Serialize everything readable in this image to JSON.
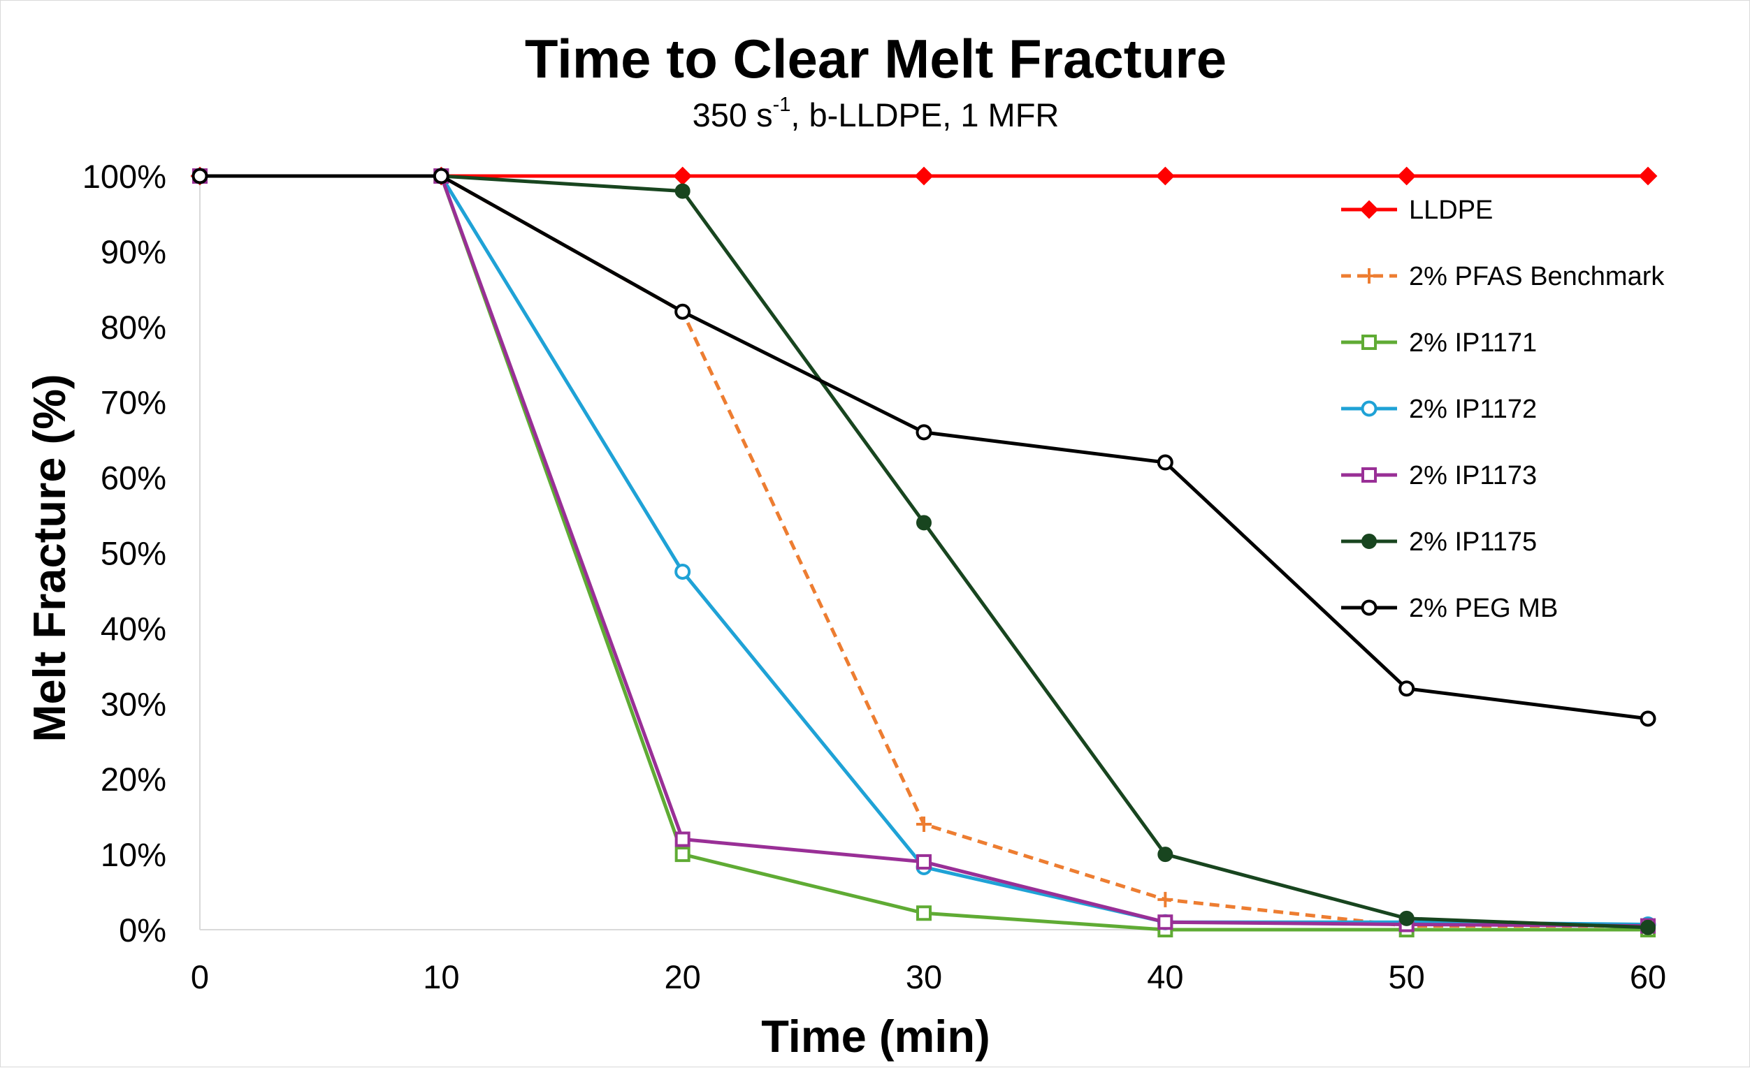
{
  "chart_data": {
    "type": "line",
    "title": "Time to Clear Melt Fracture",
    "subtitle": {
      "base": "350 s",
      "superscript": "-1",
      "rest": ", b-LLDPE, 1 MFR"
    },
    "xlabel": "Time (min)",
    "ylabel": "Melt Fracture (%)",
    "xlim": [
      0,
      60
    ],
    "ylim": [
      0,
      100
    ],
    "x_ticks": [
      0,
      10,
      20,
      30,
      40,
      50,
      60
    ],
    "x_tick_labels": [
      "0",
      "10",
      "20",
      "30",
      "40",
      "50",
      "60"
    ],
    "y_ticks": [
      0,
      10,
      20,
      30,
      40,
      50,
      60,
      70,
      80,
      90,
      100
    ],
    "y_tick_labels": [
      "0%",
      "10%",
      "20%",
      "30%",
      "40%",
      "50%",
      "60%",
      "70%",
      "80%",
      "90%",
      "100%"
    ],
    "grid": false,
    "legend_position": "right",
    "x": [
      0,
      10,
      20,
      30,
      40,
      50,
      60
    ],
    "series": [
      {
        "name": "LLDPE",
        "color": "#ff0000",
        "marker": "diamond",
        "dashed": false,
        "values": [
          100,
          100,
          100,
          100,
          100,
          100,
          100
        ]
      },
      {
        "name": "2% PFAS Benchmark",
        "color": "#ed7d31",
        "marker": "plus",
        "dashed": true,
        "values": [
          100,
          100,
          82,
          14,
          4,
          0.5,
          0.5
        ]
      },
      {
        "name": "2% IP1171",
        "color": "#5fab34",
        "marker": "square-open",
        "dashed": false,
        "values": [
          100,
          100,
          10,
          2.2,
          0,
          0,
          0
        ]
      },
      {
        "name": "2% IP1172",
        "color": "#1fa2d6",
        "marker": "circle-open",
        "dashed": false,
        "values": [
          100,
          100,
          47.5,
          8.3,
          1,
          1,
          0.7
        ]
      },
      {
        "name": "2% IP1173",
        "color": "#992f96",
        "marker": "square-open",
        "dashed": false,
        "values": [
          100,
          100,
          12,
          9,
          1,
          0.7,
          0.5
        ]
      },
      {
        "name": "2% IP1175",
        "color": "#18451f",
        "marker": "circle-filled",
        "dashed": false,
        "values": [
          100,
          100,
          98,
          54,
          10,
          1.5,
          0.3
        ]
      },
      {
        "name": "2% PEG MB",
        "color": "#000000",
        "marker": "circle-open",
        "dashed": false,
        "values": [
          100,
          100,
          82,
          66,
          62,
          32,
          28
        ]
      }
    ]
  }
}
